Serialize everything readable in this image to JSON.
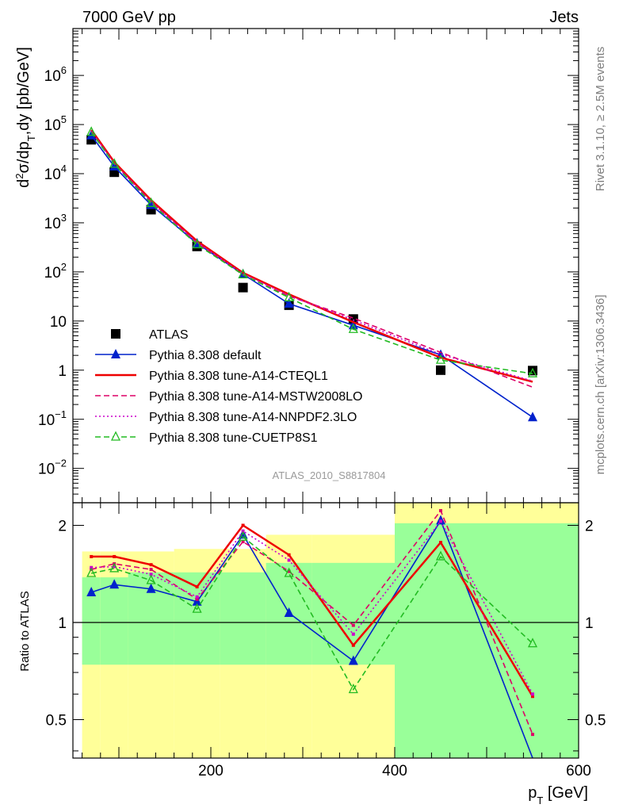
{
  "header": {
    "left": "7000 GeV pp",
    "right": "Jets"
  },
  "side_labels": {
    "rivet": "Rivet 3.1.10, ≥ 2.5M events",
    "source": "mcplots.cern.ch [arXiv:1306.3436]"
  },
  "analysis_id": "ATLAS_2010_S8817804",
  "chart_data": [
    {
      "type": "scatter",
      "panel": "main",
      "ylabel": "d²σ/dpT,dy [pb/GeV]",
      "yscale": "log",
      "ylim": [
        0.002,
        9000000
      ],
      "xlim": [
        50,
        600
      ],
      "x": [
        70,
        95,
        135,
        185,
        235,
        285,
        355,
        450,
        550
      ],
      "y_ticks": [
        0.01,
        0.1,
        1,
        10,
        100,
        1000,
        10000,
        100000,
        1000000
      ],
      "y_tick_labels": [
        "10⁻²",
        "10⁻¹",
        "1",
        "10",
        "10²",
        "10³",
        "10⁴",
        "10⁵",
        "10⁶"
      ],
      "legend": {
        "position": "bottom-left",
        "entries": [
          "ATLAS",
          "Pythia 8.308 default",
          "Pythia 8.308 tune-A14-CTEQL1",
          "Pythia 8.308 tune-A14-MSTW2008LO",
          "Pythia 8.308 tune-A14-NNPDF2.3LO",
          "Pythia 8.308 tune-CUETP8S1"
        ]
      },
      "series": [
        {
          "name": "ATLAS",
          "color": "#000000",
          "style": "square",
          "values": [
            49000,
            10700,
            1850,
            330,
            48,
            21,
            11,
            1.0,
            0.98
          ]
        },
        {
          "name": "Pythia 8.308 default",
          "color": "#0022cc",
          "style": "solid-triangle",
          "values": [
            60000,
            14000,
            2300,
            380,
            90,
            22.5,
            8.2,
            2.05,
            0.11
          ]
        },
        {
          "name": "Pythia 8.308 tune-A14-CTEQL1",
          "color": "#ee0000",
          "style": "solid",
          "values": [
            78000,
            17200,
            2900,
            425,
            96,
            35,
            9.5,
            1.8,
            0.58
          ]
        },
        {
          "name": "Pythia 8.308 tune-A14-MSTW2008LO",
          "color": "#dd0066",
          "style": "dashed",
          "values": [
            72000,
            16300,
            2700,
            390,
            87,
            32,
            11.5,
            2.3,
            0.45
          ]
        },
        {
          "name": "Pythia 8.308 tune-A14-NNPDF2.3LO",
          "color": "#cc00cc",
          "style": "dotted",
          "values": [
            73000,
            16000,
            2600,
            400,
            92,
            33,
            10.5,
            2.1,
            0.6
          ]
        },
        {
          "name": "Pythia 8.308 tune-CUETP8S1",
          "color": "#22bb22",
          "style": "dashed-open-triangle",
          "values": [
            70000,
            15700,
            2500,
            360,
            88,
            30,
            6.8,
            1.6,
            0.85
          ]
        }
      ]
    },
    {
      "type": "line",
      "panel": "ratio",
      "ylabel": "Ratio to ATLAS",
      "yscale": "log",
      "ylim": [
        0.38,
        2.35
      ],
      "xlim": [
        50,
        600
      ],
      "xlabel": "pT [GeV]",
      "x_ticks": [
        200,
        400,
        600
      ],
      "x_tick_labels": [
        "200",
        "400",
        "600"
      ],
      "y_ticks": [
        0.5,
        1,
        2
      ],
      "y_tick_labels": [
        "0.5",
        "1",
        "2"
      ],
      "reference_line": 1,
      "uncertainty_bands": {
        "bins": [
          [
            60,
            80
          ],
          [
            80,
            110
          ],
          [
            110,
            160
          ],
          [
            160,
            210
          ],
          [
            210,
            260
          ],
          [
            260,
            310
          ],
          [
            310,
            400
          ],
          [
            400,
            500
          ],
          [
            500,
            600
          ]
        ],
        "stat_lo": [
          0.74,
          0.74,
          0.74,
          0.74,
          0.74,
          0.74,
          0.74,
          0.32,
          0.32
        ],
        "stat_hi": [
          1.38,
          1.38,
          1.43,
          1.43,
          1.43,
          1.53,
          1.53,
          2.03,
          2.03
        ],
        "total_lo": [
          0.35,
          0.35,
          0.35,
          0.35,
          0.35,
          0.35,
          0.35,
          0.35,
          0.35
        ],
        "total_hi": [
          1.66,
          1.66,
          1.66,
          1.69,
          1.69,
          1.87,
          1.87,
          2.35,
          2.35
        ]
      },
      "series": [
        {
          "name": "Pythia 8.308 default",
          "color": "#0022cc",
          "values": [
            1.24,
            1.31,
            1.27,
            1.16,
            1.87,
            1.07,
            0.76,
            2.07,
            0.1
          ]
        },
        {
          "name": "Pythia 8.308 tune-A14-CTEQL1",
          "color": "#ee0000",
          "values": [
            1.6,
            1.6,
            1.51,
            1.29,
            2.0,
            1.62,
            0.85,
            1.77,
            0.59
          ]
        },
        {
          "name": "Pythia 8.308 tune-A14-MSTW2008LO",
          "color": "#dd0066",
          "values": [
            1.46,
            1.52,
            1.46,
            1.18,
            1.78,
            1.44,
            0.98,
            2.22,
            0.45
          ]
        },
        {
          "name": "Pythia 8.308 tune-A14-NNPDF2.3LO",
          "color": "#cc00cc",
          "values": [
            1.48,
            1.49,
            1.41,
            1.2,
            1.92,
            1.56,
            0.92,
            2.06,
            0.6
          ]
        },
        {
          "name": "Pythia 8.308 tune-CUETP8S1",
          "color": "#22bb22",
          "values": [
            1.42,
            1.47,
            1.35,
            1.1,
            1.84,
            1.42,
            0.62,
            1.6,
            0.86
          ]
        }
      ]
    }
  ]
}
